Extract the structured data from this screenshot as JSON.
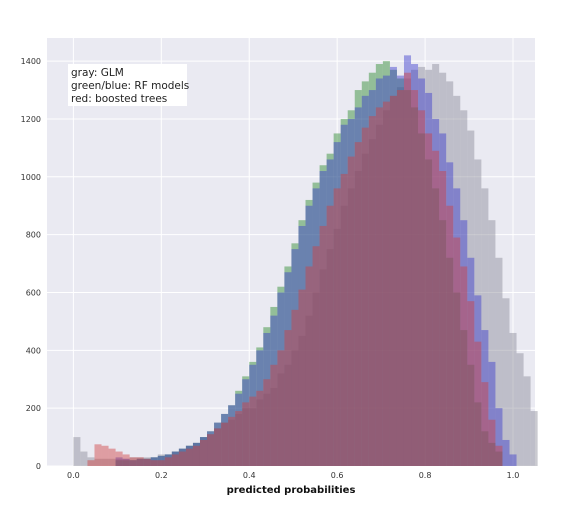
{
  "chart_data": {
    "type": "histogram",
    "title": "",
    "xlabel": "predicted probabilities",
    "ylabel": "",
    "xlim": [
      -0.06,
      1.05
    ],
    "ylim": [
      0,
      1480
    ],
    "x_ticks": [
      0.0,
      0.2,
      0.4,
      0.6,
      0.8,
      1.0
    ],
    "y_ticks": [
      0,
      200,
      400,
      600,
      800,
      1000,
      1200,
      1400
    ],
    "grid": true,
    "legend_placement": "top-left",
    "annotation_lines": [
      "gray: GLM",
      "green/blue: RF models",
      "red: boosted trees"
    ],
    "bin_width": 0.016,
    "series": [
      {
        "color": "#8a8a96",
        "bin_start": 0.0,
        "counts": [
          100,
          50,
          30,
          25,
          25,
          25,
          25,
          25,
          30,
          30,
          30,
          30,
          40,
          40,
          50,
          60,
          70,
          80,
          100,
          110,
          130,
          150,
          160,
          180,
          200,
          200,
          230,
          250,
          270,
          320,
          350,
          400,
          450,
          520,
          600,
          680,
          750,
          820,
          900,
          960,
          1020,
          1080,
          1130,
          1180,
          1230,
          1280,
          1310,
          1340,
          1370,
          1380,
          1370,
          1390,
          1360,
          1330,
          1280,
          1230,
          1160,
          1060,
          960,
          850,
          720,
          580,
          460,
          390,
          310,
          190
        ]
      },
      {
        "color": "#2a8a2a",
        "bin_start": 0.096,
        "counts": [
          20,
          20,
          20,
          25,
          25,
          30,
          35,
          40,
          50,
          60,
          70,
          80,
          100,
          120,
          150,
          180,
          210,
          260,
          310,
          360,
          410,
          480,
          550,
          620,
          690,
          770,
          850,
          920,
          980,
          1040,
          1080,
          1150,
          1200,
          1230,
          1300,
          1330,
          1360,
          1390,
          1400,
          1370,
          1340,
          1300,
          1240,
          1150,
          1060,
          960,
          850,
          720,
          600,
          470,
          350,
          220,
          120,
          80,
          50
        ]
      },
      {
        "color": "#3a3acc",
        "bin_start": 0.096,
        "counts": [
          30,
          25,
          20,
          25,
          25,
          30,
          35,
          40,
          50,
          60,
          70,
          80,
          100,
          120,
          150,
          180,
          210,
          250,
          300,
          350,
          400,
          460,
          520,
          600,
          670,
          750,
          830,
          900,
          960,
          1020,
          1060,
          1120,
          1180,
          1200,
          1240,
          1280,
          1300,
          1340,
          1350,
          1380,
          1350,
          1420,
          1390,
          1340,
          1290,
          1200,
          1150,
          1050,
          960,
          850,
          720,
          590,
          470,
          360,
          200,
          90,
          40
        ]
      },
      {
        "color": "#d04040",
        "bin_start": 0.032,
        "counts": [
          20,
          75,
          70,
          60,
          50,
          40,
          30,
          30,
          25,
          20,
          20,
          30,
          40,
          50,
          60,
          70,
          90,
          110,
          130,
          150,
          170,
          190,
          220,
          240,
          260,
          300,
          350,
          400,
          470,
          540,
          610,
          690,
          760,
          830,
          900,
          960,
          1010,
          1070,
          1120,
          1170,
          1210,
          1240,
          1260,
          1280,
          1300,
          1360,
          1300,
          1230,
          1150,
          1090,
          1020,
          900,
          790,
          690,
          570,
          430,
          290,
          160,
          70
        ]
      }
    ]
  }
}
